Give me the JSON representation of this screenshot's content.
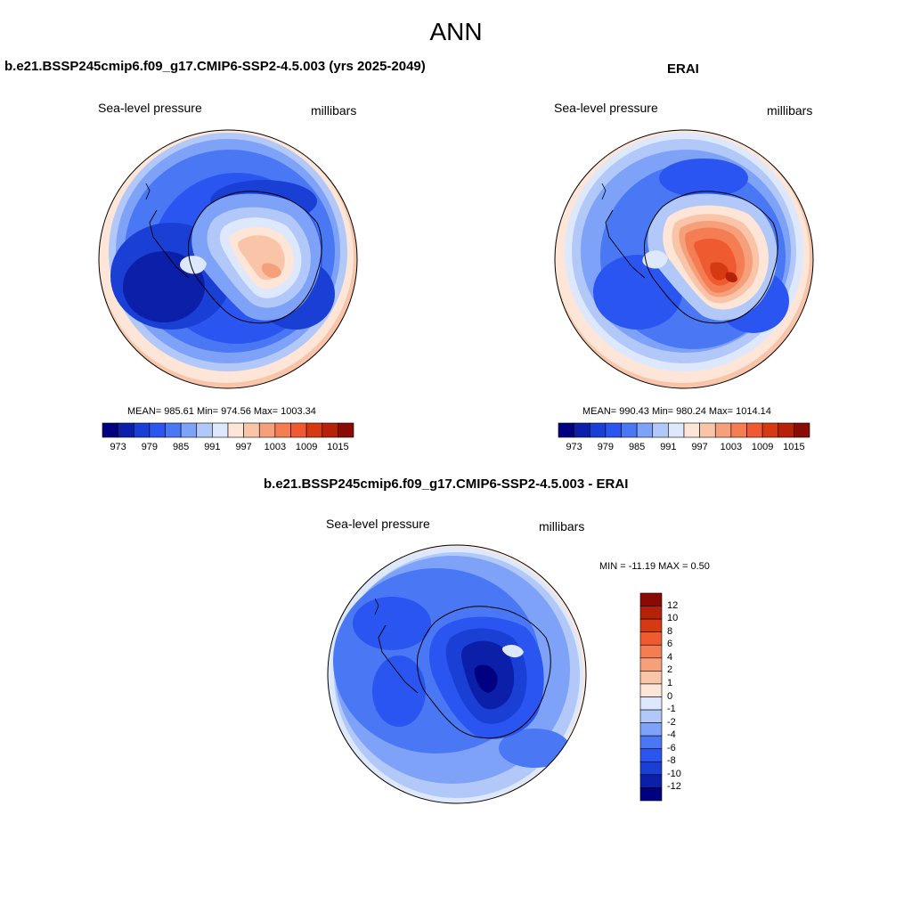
{
  "page": {
    "title": "ANN"
  },
  "palette": {
    "levels": [
      "#000080",
      "#0b1fa8",
      "#1a3fd4",
      "#2a55f0",
      "#4a78f5",
      "#7ea2f7",
      "#b1c8f9",
      "#dde8fc",
      "#fde5d8",
      "#f9c4a7",
      "#f6a07b",
      "#f47d54",
      "#f05a30",
      "#d63a12",
      "#b52109",
      "#8a0a04"
    ],
    "diff_levels": [
      "#000080",
      "#0b1fa8",
      "#1a3fd4",
      "#2a55f0",
      "#4a78f5",
      "#7ea2f7",
      "#b1c8f9",
      "#dde8fc",
      "#fde5d8",
      "#f9c4a7",
      "#f6a07b",
      "#f47d54",
      "#f05a30",
      "#d63a12",
      "#b52109",
      "#8a0a04"
    ]
  },
  "panels": {
    "model": {
      "title": "b.e21.BSSP245cmip6.f09_g17.CMIP6-SSP2-4.5.003 (yrs 2025-2049)",
      "variable": "Sea-level pressure",
      "units": "millibars",
      "stats": "MEAN= 985.61  Min= 974.56  Max= 1003.34",
      "colorbar_labels": [
        "973",
        "979",
        "985",
        "991",
        "997",
        "1003",
        "1009",
        "1015"
      ]
    },
    "obs": {
      "title": "ERAI",
      "variable": "Sea-level pressure",
      "units": "millibars",
      "stats": "MEAN= 990.43  Min= 980.24  Max= 1014.14",
      "colorbar_labels": [
        "973",
        "979",
        "985",
        "991",
        "997",
        "1003",
        "1009",
        "1015"
      ]
    },
    "diff": {
      "title": "b.e21.BSSP245cmip6.f09_g17.CMIP6-SSP2-4.5.003 - ERAI",
      "variable": "Sea-level pressure",
      "units": "millibars",
      "stats": "MIN = -11.19 MAX =   0.50",
      "colorbar_labels": [
        "12",
        "10",
        "8",
        "6",
        "4",
        "2",
        "1",
        "0",
        "-1",
        "-2",
        "-4",
        "-6",
        "-8",
        "-10",
        "-12"
      ]
    }
  }
}
